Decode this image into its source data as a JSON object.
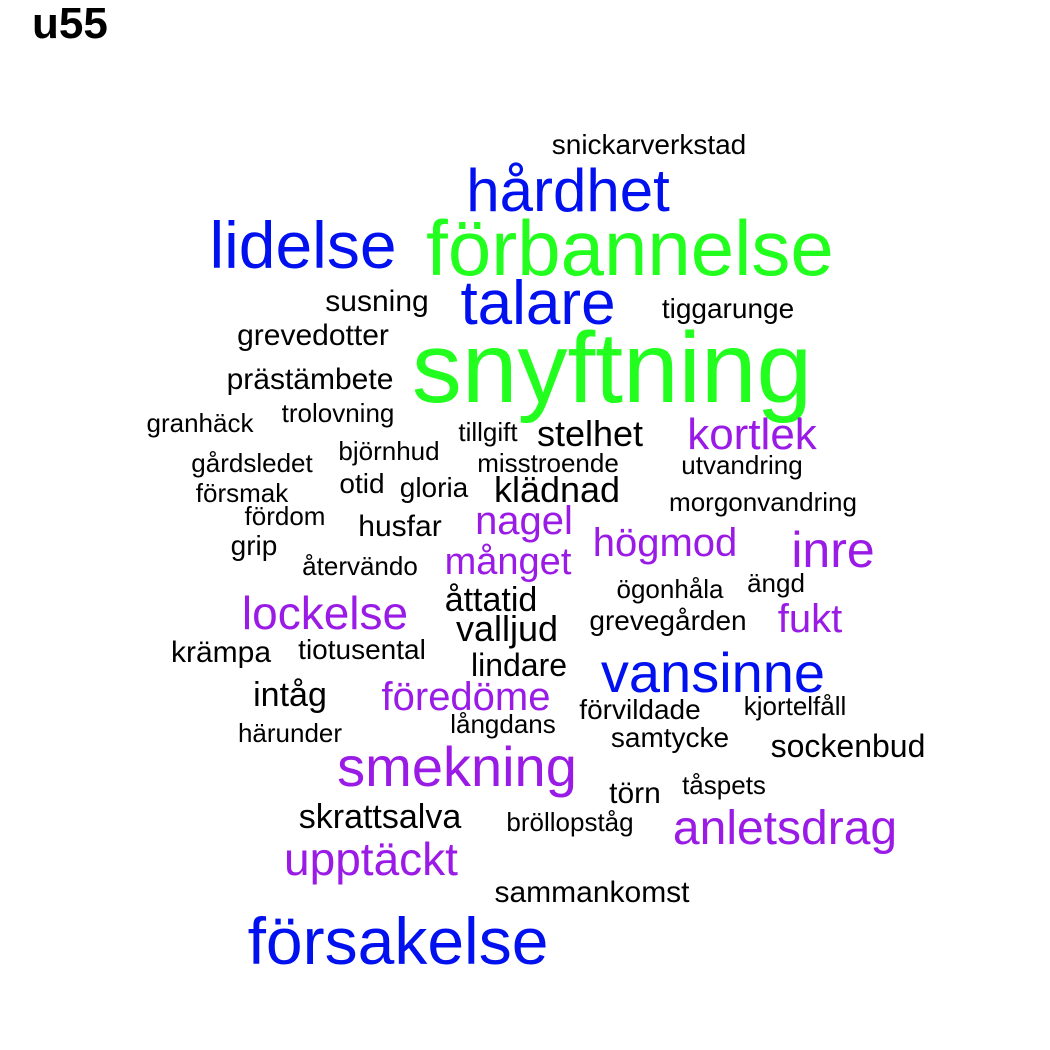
{
  "title": "u55",
  "palette": {
    "green": "#22ff1e",
    "blue": "#0010ee",
    "purple": "#9a1ae6",
    "black": "#000000"
  },
  "words": [
    {
      "text": "snickarverkstad",
      "color": "black"
    },
    {
      "text": "hårdhet",
      "color": "blue"
    },
    {
      "text": "lidelse",
      "color": "blue"
    },
    {
      "text": "förbannelse",
      "color": "green"
    },
    {
      "text": "susning",
      "color": "black"
    },
    {
      "text": "talare",
      "color": "blue"
    },
    {
      "text": "tiggarunge",
      "color": "black"
    },
    {
      "text": "grevedotter",
      "color": "black"
    },
    {
      "text": "snyftning",
      "color": "green"
    },
    {
      "text": "prästämbete",
      "color": "black"
    },
    {
      "text": "granhäck",
      "color": "black"
    },
    {
      "text": "trolovning",
      "color": "black"
    },
    {
      "text": "tillgift",
      "color": "black"
    },
    {
      "text": "stelhet",
      "color": "black"
    },
    {
      "text": "kortlek",
      "color": "purple"
    },
    {
      "text": "björnhud",
      "color": "black"
    },
    {
      "text": "gårdsledet",
      "color": "black"
    },
    {
      "text": "misstroende",
      "color": "black"
    },
    {
      "text": "utvandring",
      "color": "black"
    },
    {
      "text": "otid",
      "color": "black"
    },
    {
      "text": "gloria",
      "color": "black"
    },
    {
      "text": "klädnad",
      "color": "black"
    },
    {
      "text": "försmak",
      "color": "black"
    },
    {
      "text": "morgonvandring",
      "color": "black"
    },
    {
      "text": "fördom",
      "color": "black"
    },
    {
      "text": "nagel",
      "color": "purple"
    },
    {
      "text": "husfar",
      "color": "black"
    },
    {
      "text": "högmod",
      "color": "purple"
    },
    {
      "text": "inre",
      "color": "purple"
    },
    {
      "text": "grip",
      "color": "black"
    },
    {
      "text": "månget",
      "color": "purple"
    },
    {
      "text": "återvändo",
      "color": "black"
    },
    {
      "text": "ögonhåla",
      "color": "black"
    },
    {
      "text": "ängd",
      "color": "black"
    },
    {
      "text": "åttatid",
      "color": "black"
    },
    {
      "text": "lockelse",
      "color": "purple"
    },
    {
      "text": "grevegården",
      "color": "black"
    },
    {
      "text": "fukt",
      "color": "purple"
    },
    {
      "text": "valljud",
      "color": "black"
    },
    {
      "text": "krämpa",
      "color": "black"
    },
    {
      "text": "tiotusental",
      "color": "black"
    },
    {
      "text": "lindare",
      "color": "black"
    },
    {
      "text": "vansinne",
      "color": "blue"
    },
    {
      "text": "intåg",
      "color": "black"
    },
    {
      "text": "föredöme",
      "color": "purple"
    },
    {
      "text": "förvildade",
      "color": "black"
    },
    {
      "text": "kjortelfåll",
      "color": "black"
    },
    {
      "text": "långdans",
      "color": "black"
    },
    {
      "text": "härunder",
      "color": "black"
    },
    {
      "text": "samtycke",
      "color": "black"
    },
    {
      "text": "sockenbud",
      "color": "black"
    },
    {
      "text": "smekning",
      "color": "purple"
    },
    {
      "text": "tåspets",
      "color": "black"
    },
    {
      "text": "törn",
      "color": "black"
    },
    {
      "text": "skrattsalva",
      "color": "black"
    },
    {
      "text": "bröllopståg",
      "color": "black"
    },
    {
      "text": "anletsdrag",
      "color": "purple"
    },
    {
      "text": "upptäckt",
      "color": "purple"
    },
    {
      "text": "sammankomst",
      "color": "black"
    },
    {
      "text": "försakelse",
      "color": "blue"
    }
  ]
}
